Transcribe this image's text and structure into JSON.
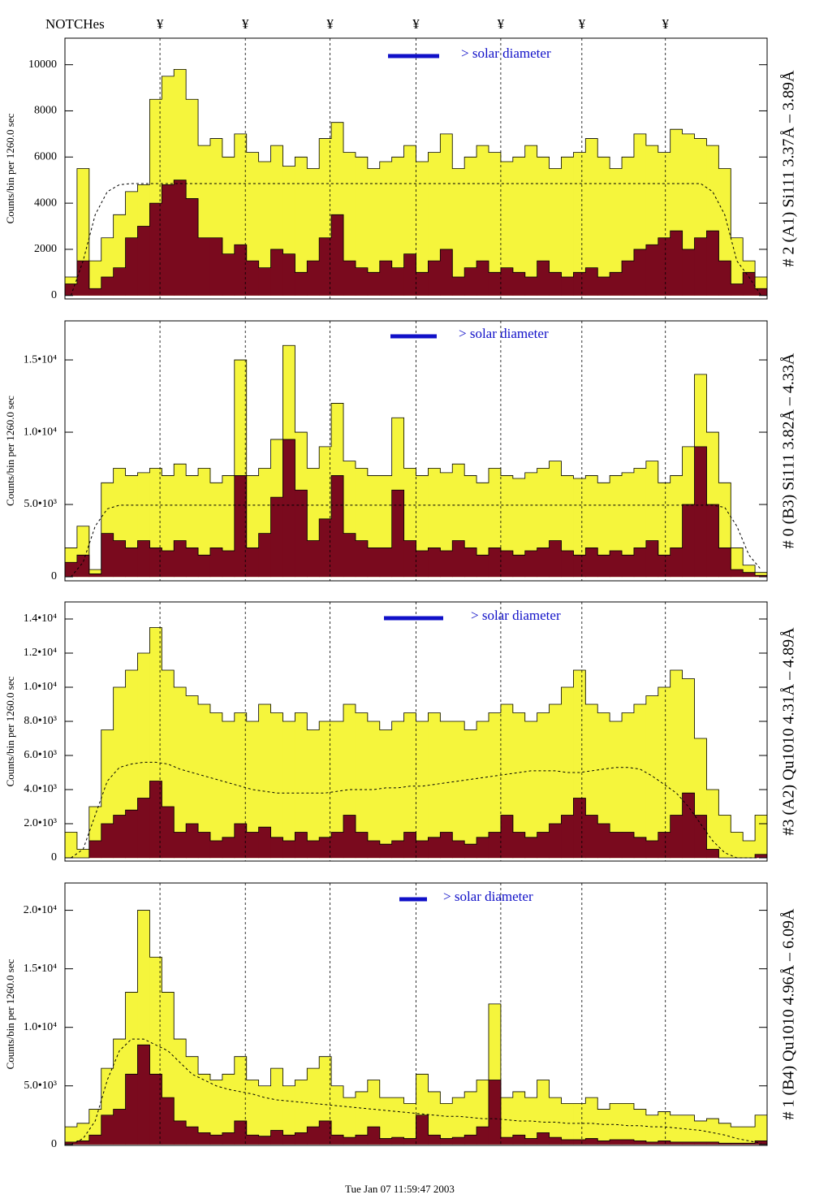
{
  "notches": {
    "label": "NOTCHes",
    "marks": [
      "¥",
      "¥",
      "¥",
      "¥",
      "¥",
      "¥",
      "¥"
    ],
    "x": [
      7.85,
      14.9,
      21.9,
      29.0,
      36.0,
      42.7,
      49.6
    ]
  },
  "footer": "Tue Jan 07 11:59:47 2003",
  "chart_data": [
    {
      "type": "histogram",
      "title": "# 2 (A1) Si111  3.37Å – 3.89Å",
      "y_label": "Counts/bin per   1260.0 sec",
      "legend_text": "> solar diameter",
      "legend_color": "#1010c8",
      "xlim": [
        0,
        58
      ],
      "ylim": [
        -150,
        11150
      ],
      "yticks": [
        0,
        2000,
        4000,
        6000,
        8000,
        10000
      ],
      "series": [
        {
          "color": "#f5f53c",
          "style": "step-fill",
          "values": [
            800,
            5500,
            1500,
            2500,
            3500,
            4500,
            4800,
            8500,
            9500,
            9800,
            8500,
            6500,
            6800,
            6000,
            7000,
            6200,
            5800,
            6500,
            5600,
            6000,
            5500,
            6800,
            7500,
            6200,
            6000,
            5500,
            5800,
            6000,
            6500,
            5800,
            6200,
            7000,
            5500,
            6000,
            6500,
            6200,
            5800,
            6000,
            6500,
            6000,
            5500,
            6000,
            6200,
            6800,
            6000,
            5500,
            6000,
            7000,
            6500,
            6200,
            7200,
            7000,
            6800,
            6500,
            5500,
            2500,
            1500,
            800
          ]
        },
        {
          "color": "#7a0a1e",
          "style": "step-fill",
          "values": [
            500,
            1500,
            300,
            800,
            1200,
            2500,
            3000,
            4000,
            4800,
            5000,
            4200,
            2500,
            2500,
            1800,
            2200,
            1500,
            1200,
            2000,
            1800,
            1000,
            1500,
            2500,
            3500,
            1500,
            1200,
            1000,
            1500,
            1200,
            1800,
            1000,
            1500,
            2000,
            800,
            1200,
            1500,
            1000,
            1200,
            1000,
            800,
            1500,
            1000,
            800,
            1000,
            1200,
            800,
            1000,
            1500,
            2000,
            2200,
            2500,
            2800,
            2000,
            2500,
            2800,
            1500,
            500,
            1000,
            300
          ]
        },
        {
          "color": "#000000",
          "style": "dashed",
          "values": [
            0,
            1500,
            3500,
            4500,
            4800,
            4850,
            4850,
            4850,
            4850,
            4850,
            4850,
            4850,
            4850,
            4850,
            4850,
            4850,
            4850,
            4850,
            4850,
            4850,
            4850,
            4850,
            4850,
            4850,
            4850,
            4850,
            4850,
            4850,
            4850,
            4850,
            4850,
            4850,
            4850,
            4850,
            4850,
            4850,
            4850,
            4850,
            4850,
            4850,
            4850,
            4850,
            4850,
            4850,
            4850,
            4850,
            4850,
            4850,
            4850,
            4850,
            4850,
            4850,
            4850,
            4500,
            3500,
            1500,
            800,
            0
          ]
        }
      ]
    },
    {
      "type": "histogram",
      "title": "# 0 (B3) Si111  3.82Å – 4.33Å",
      "y_label": "Counts/bin per   1260.0 sec",
      "legend_text": "> solar diameter",
      "legend_color": "#1010c8",
      "xlim": [
        0,
        58
      ],
      "ylim": [
        -280,
        17700
      ],
      "yticks": [
        0,
        {
          "value": 5000,
          "label": "5.0•10³"
        },
        {
          "value": 10000,
          "label": "1.0•10⁴"
        },
        {
          "value": 15000,
          "label": "1.5•10⁴"
        }
      ],
      "series": [
        {
          "color": "#f5f53c",
          "style": "step-fill",
          "values": [
            2000,
            3500,
            500,
            6500,
            7500,
            7000,
            7200,
            7500,
            7000,
            7800,
            7000,
            7500,
            6500,
            7000,
            15000,
            7000,
            7500,
            9500,
            16000,
            10000,
            7500,
            9000,
            12000,
            8000,
            7500,
            7000,
            7000,
            11000,
            7500,
            7000,
            7500,
            7200,
            7800,
            7000,
            6500,
            7500,
            7000,
            6800,
            7200,
            7500,
            8000,
            7000,
            6800,
            7000,
            6500,
            7000,
            7200,
            7500,
            8000,
            6500,
            7000,
            9000,
            14000,
            10000,
            6500,
            2000,
            800,
            300
          ]
        },
        {
          "color": "#7a0a1e",
          "style": "step-fill",
          "values": [
            1000,
            1500,
            200,
            3000,
            2500,
            2000,
            2500,
            2000,
            1800,
            2500,
            2000,
            1500,
            2000,
            1800,
            7000,
            2000,
            3000,
            5500,
            9500,
            6000,
            2500,
            4000,
            7000,
            3000,
            2500,
            2000,
            2000,
            6000,
            2500,
            1800,
            2000,
            1800,
            2500,
            2000,
            1500,
            2000,
            1800,
            1500,
            1800,
            2000,
            2500,
            1800,
            1500,
            2000,
            1500,
            1800,
            1500,
            2000,
            2500,
            1500,
            2000,
            5000,
            9000,
            5000,
            2000,
            500,
            300,
            100
          ]
        },
        {
          "color": "#000000",
          "style": "dashed",
          "values": [
            0,
            1000,
            3500,
            4700,
            4950,
            4950,
            4950,
            4950,
            4950,
            4950,
            4950,
            4950,
            4950,
            4950,
            4950,
            4950,
            4950,
            4950,
            4950,
            4950,
            4950,
            4950,
            4950,
            4950,
            4950,
            4950,
            4950,
            4950,
            4950,
            4950,
            4950,
            4950,
            4950,
            4950,
            4950,
            4950,
            4950,
            4950,
            4950,
            4950,
            4950,
            4950,
            4950,
            4950,
            4950,
            4950,
            4950,
            4950,
            4950,
            4950,
            4950,
            4950,
            4950,
            4950,
            4800,
            3500,
            1500,
            500
          ]
        }
      ]
    },
    {
      "type": "histogram",
      "title": "#3 (A2) Qu1010  4.31Å – 4.89Å",
      "y_label": "Counts/bin per   1260.0 sec",
      "legend_text": "> solar diameter",
      "legend_color": "#1010c8",
      "xlim": [
        0,
        58
      ],
      "ylim": [
        -190,
        15000
      ],
      "yticks": [
        0,
        {
          "value": 2000,
          "label": "2.0•10³"
        },
        {
          "value": 4000,
          "label": "4.0•10³"
        },
        {
          "value": 6000,
          "label": "6.0•10³"
        },
        {
          "value": 8000,
          "label": "8.0•10³"
        },
        {
          "value": 10000,
          "label": "1.0•10⁴"
        },
        {
          "value": 12000,
          "label": "1.2•10⁴"
        },
        {
          "value": 14000,
          "label": "1.4•10⁴"
        }
      ],
      "series": [
        {
          "color": "#f5f53c",
          "style": "step-fill",
          "values": [
            1500,
            500,
            3000,
            7500,
            10000,
            11000,
            12000,
            13500,
            11000,
            10000,
            9500,
            9000,
            8500,
            8000,
            8500,
            8000,
            9000,
            8500,
            8000,
            8500,
            7500,
            8000,
            8000,
            9000,
            8500,
            8000,
            7500,
            8000,
            8500,
            8000,
            8500,
            8000,
            8000,
            7500,
            8000,
            8500,
            9000,
            8500,
            8000,
            8500,
            9000,
            10000,
            11000,
            9000,
            8500,
            8000,
            8500,
            9000,
            9500,
            10000,
            11000,
            10500,
            7000,
            4000,
            2500,
            1500,
            1000,
            2500
          ]
        },
        {
          "color": "#7a0a1e",
          "style": "step-fill",
          "values": [
            0,
            0,
            1000,
            2000,
            2500,
            2800,
            3500,
            4500,
            3000,
            1500,
            2000,
            1500,
            1000,
            1200,
            2000,
            1500,
            1800,
            1200,
            1000,
            1500,
            1000,
            1200,
            1500,
            2500,
            1500,
            1000,
            800,
            1000,
            1500,
            1000,
            1200,
            1500,
            1000,
            800,
            1200,
            1500,
            2500,
            1500,
            1200,
            1500,
            2000,
            2500,
            3500,
            2500,
            2000,
            1500,
            1500,
            1200,
            1000,
            1500,
            2500,
            3800,
            2500,
            500,
            0,
            0,
            0,
            200
          ]
        },
        {
          "color": "#000000",
          "style": "dashed",
          "values": [
            0,
            500,
            2500,
            4500,
            5300,
            5500,
            5600,
            5600,
            5500,
            5200,
            5000,
            4800,
            4600,
            4400,
            4200,
            4000,
            3900,
            3800,
            3800,
            3800,
            3800,
            3800,
            3900,
            4000,
            4000,
            4000,
            4100,
            4100,
            4200,
            4200,
            4300,
            4400,
            4500,
            4600,
            4700,
            4800,
            4900,
            5000,
            5100,
            5100,
            5100,
            5000,
            5000,
            5100,
            5200,
            5300,
            5300,
            5200,
            4800,
            4300,
            3800,
            3000,
            2000,
            1000,
            300,
            0,
            0,
            0
          ]
        }
      ]
    },
    {
      "type": "histogram",
      "title": "# 1 (B4) Qu1010 4.96Å – 6.09Å",
      "y_label": "Counts/bin per   1260.0 sec",
      "legend_text": "> solar diameter",
      "legend_color": "#1010c8",
      "xlim": [
        0,
        58
      ],
      "ylim": [
        -85,
        22330
      ],
      "yticks": [
        0,
        {
          "value": 5000,
          "label": "5.0•10³"
        },
        {
          "value": 10000,
          "label": "1.0•10⁴"
        },
        {
          "value": 15000,
          "label": "1.5•10⁴"
        },
        {
          "value": 20000,
          "label": "2.0•10⁴"
        }
      ],
      "series": [
        {
          "color": "#f5f53c",
          "style": "step-fill",
          "values": [
            1500,
            1800,
            3000,
            6500,
            9000,
            13000,
            20000,
            16000,
            13000,
            9000,
            7500,
            6000,
            5500,
            6000,
            7500,
            5500,
            5000,
            6500,
            5000,
            5500,
            6500,
            7500,
            5000,
            4000,
            4500,
            5500,
            4000,
            4000,
            3500,
            6000,
            4500,
            3500,
            4000,
            4500,
            5500,
            12000,
            4000,
            4500,
            4000,
            5500,
            4000,
            3500,
            3500,
            4000,
            3000,
            3500,
            3500,
            3000,
            2500,
            2800,
            2500,
            2500,
            2000,
            2200,
            1800,
            1500,
            1500,
            2500
          ]
        },
        {
          "color": "#7a0a1e",
          "style": "step-fill",
          "values": [
            200,
            300,
            800,
            2500,
            3000,
            6000,
            8500,
            6000,
            4000,
            2000,
            1500,
            1000,
            800,
            1000,
            2000,
            800,
            700,
            1200,
            800,
            1000,
            1500,
            2000,
            800,
            600,
            800,
            1500,
            500,
            600,
            500,
            2500,
            800,
            500,
            600,
            800,
            1500,
            5500,
            600,
            800,
            500,
            1000,
            600,
            400,
            400,
            500,
            300,
            400,
            400,
            300,
            200,
            300,
            200,
            200,
            200,
            200,
            100,
            100,
            100,
            300
          ]
        },
        {
          "color": "#000000",
          "style": "dashed",
          "values": [
            0,
            500,
            2000,
            5500,
            8000,
            9000,
            9000,
            8500,
            8000,
            7000,
            6000,
            5500,
            5000,
            4700,
            4500,
            4300,
            4000,
            3800,
            3700,
            3600,
            3500,
            3400,
            3300,
            3200,
            3100,
            3000,
            2900,
            2800,
            2700,
            2600,
            2500,
            2400,
            2400,
            2300,
            2200,
            2200,
            2100,
            2000,
            2000,
            1900,
            1900,
            1800,
            1800,
            1800,
            1700,
            1700,
            1600,
            1600,
            1500,
            1500,
            1400,
            1300,
            1200,
            1000,
            800,
            500,
            300,
            100
          ]
        }
      ]
    }
  ]
}
